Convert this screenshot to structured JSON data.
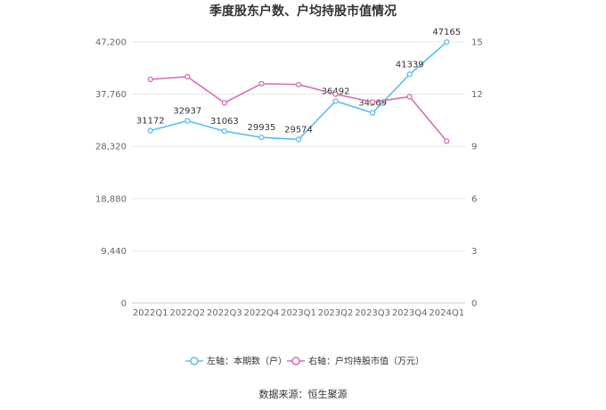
{
  "chart_data": {
    "type": "line",
    "title": "季度股东户数、户均持股市值情况",
    "categories": [
      "2022Q1",
      "2022Q2",
      "2022Q3",
      "2022Q4",
      "2023Q1",
      "2023Q2",
      "2023Q3",
      "2023Q4",
      "2024Q1"
    ],
    "left_axis": {
      "ylim": [
        0,
        47200
      ],
      "ticks": [
        "0",
        "9,440",
        "18,880",
        "28,320",
        "37,760",
        "47,200"
      ]
    },
    "right_axis": {
      "ylim": [
        0,
        15
      ],
      "ticks": [
        "0",
        "3",
        "6",
        "9",
        "12",
        "15"
      ]
    },
    "series": [
      {
        "name": "左轴：本期数（户）",
        "axis": "left",
        "color": "#5bc0eb",
        "values": [
          31172,
          32937,
          31063,
          29935,
          29574,
          36492,
          34369,
          41339,
          47165
        ],
        "labels": [
          "31172",
          "32937",
          "31063",
          "29935",
          "29574",
          "36492",
          "34369",
          "41339",
          "47165"
        ]
      },
      {
        "name": "右轴：户均持股市值（万元）",
        "axis": "right",
        "color": "#d36fb3",
        "values": [
          12.85,
          13.0,
          11.5,
          12.6,
          12.55,
          12.0,
          11.55,
          11.85,
          9.3
        ]
      }
    ],
    "grid": true,
    "legend": "bottom",
    "source": "数据来源：恒生聚源"
  }
}
